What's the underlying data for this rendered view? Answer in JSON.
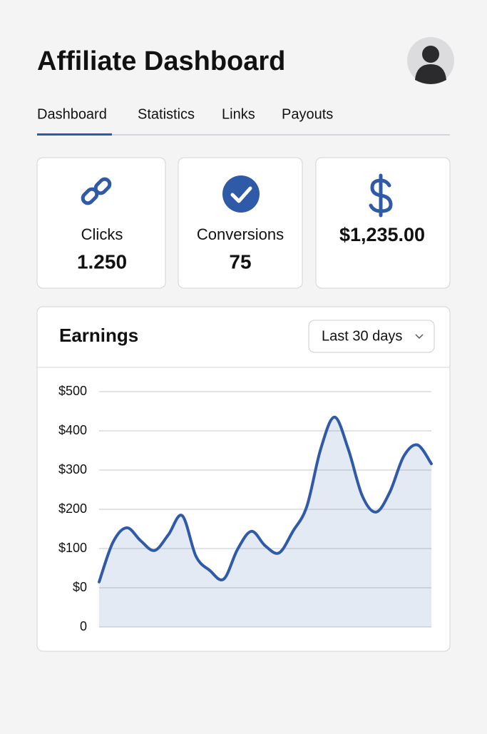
{
  "header": {
    "title": "Affiliate Dashboard"
  },
  "tabs": [
    "Dashboard",
    "Statistics",
    "Links",
    "Payouts"
  ],
  "stats": [
    {
      "label": "Clicks",
      "value": "1.250"
    },
    {
      "label": "Conversions",
      "value": "75"
    },
    {
      "value": "$1,235.00"
    }
  ],
  "chart_data": {
    "type": "line",
    "title": "Earnings",
    "range_selector": "Last 30 days",
    "series": [
      {
        "color": "#2f5aa8",
        "values": [
          15,
          116,
          153,
          120,
          95,
          135,
          184,
          80,
          44,
          22,
          98,
          144,
          107,
          89,
          144,
          207,
          353,
          435,
          353,
          235,
          193,
          244,
          335,
          364,
          316
        ]
      }
    ],
    "ylim": [
      -100,
      500
    ],
    "yticks": [
      {
        "value": 500,
        "label": "$500"
      },
      {
        "value": 400,
        "label": "$400"
      },
      {
        "value": 300,
        "label": "$300"
      },
      {
        "value": 200,
        "label": "$200"
      },
      {
        "value": 100,
        "label": "$100"
      },
      {
        "value": 0,
        "label": "$0"
      }
    ],
    "baseline_label": "0",
    "grid": true
  }
}
